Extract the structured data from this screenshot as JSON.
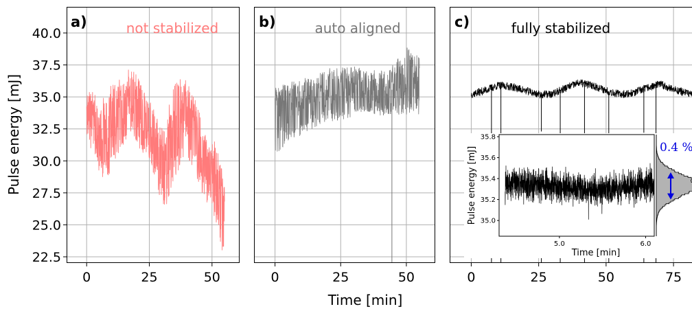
{
  "colors": {
    "series_a": "#ff7b7b",
    "series_b": "#777777",
    "series_c": "#000000",
    "annotation": "#0000dd",
    "grid": "#b0b0b0",
    "histogram_fill": "#b3b3b3"
  },
  "chart_data": [
    {
      "panel": "a)",
      "type": "line",
      "title": "not stabilized",
      "ylabel": "Pulse energy [mJ]",
      "xlim": [
        -8,
        61
      ],
      "ylim": [
        22,
        42.2
      ],
      "xticks": [
        0,
        25,
        50
      ],
      "yticks": [
        22.5,
        25.0,
        27.5,
        30.0,
        32.5,
        35.0,
        37.5,
        40.0
      ],
      "grid": true,
      "x": [
        0,
        3,
        5,
        7,
        9,
        11,
        14,
        17,
        19,
        21,
        23,
        25,
        27,
        29,
        31,
        33,
        35,
        37,
        39,
        41,
        43,
        45,
        47,
        49,
        51,
        53,
        55
      ],
      "y_mean": [
        33.5,
        32.9,
        32.3,
        32.0,
        32.6,
        33.6,
        34.5,
        35.2,
        34.8,
        34.0,
        33.2,
        32.5,
        31.8,
        30.3,
        29.5,
        30.5,
        32.6,
        33.5,
        33.8,
        33.0,
        32.3,
        30.8,
        29.5,
        29.0,
        28.5,
        27.5,
        26.0
      ],
      "y_min": [
        32.0,
        30.0,
        29.0,
        28.5,
        28.8,
        30.0,
        31.0,
        32.0,
        31.8,
        31.0,
        30.5,
        30.2,
        28.5,
        27.0,
        26.2,
        27.0,
        28.5,
        29.5,
        30.5,
        30.0,
        29.0,
        27.8,
        27.0,
        26.5,
        25.5,
        23.5,
        22.6
      ],
      "y_max": [
        35.6,
        35.3,
        34.5,
        35.0,
        35.8,
        36.0,
        36.5,
        37.2,
        37.0,
        36.3,
        35.4,
        35.0,
        34.0,
        33.0,
        32.6,
        34.5,
        36.2,
        36.5,
        36.6,
        36.0,
        34.9,
        33.8,
        32.2,
        31.0,
        31.5,
        30.5,
        28.5
      ]
    },
    {
      "panel": "b)",
      "type": "line",
      "title": "auto aligned",
      "xlim": [
        -8,
        61
      ],
      "ylim": [
        22,
        42.2
      ],
      "xticks": [
        0,
        25,
        50
      ],
      "grid": true,
      "x": [
        0,
        5,
        10,
        15,
        20,
        25,
        30,
        35,
        40,
        45,
        50,
        55
      ],
      "y_mean": [
        34.2,
        34.4,
        34.5,
        34.8,
        35.3,
        35.4,
        35.8,
        35.6,
        35.2,
        35.6,
        36.0,
        35.6
      ],
      "y_min": [
        30.2,
        31.5,
        32.0,
        32.5,
        33.0,
        33.2,
        33.5,
        33.8,
        33.5,
        33.6,
        33.6,
        33.4
      ],
      "y_max": [
        35.8,
        36.1,
        36.4,
        36.6,
        37.2,
        37.4,
        37.5,
        37.2,
        37.0,
        37.6,
        38.9,
        38.5
      ],
      "dropout": {
        "x": 44.5,
        "y": 22
      }
    },
    {
      "panel": "c)",
      "type": "line",
      "title": "fully stabilized",
      "xlim": [
        -8,
        90
      ],
      "ylim": [
        22,
        42.2
      ],
      "xticks": [
        0,
        25,
        50,
        75
      ],
      "grid": true,
      "x": [
        0,
        5,
        10,
        15,
        20,
        25,
        30,
        35,
        40,
        45,
        50,
        55,
        60,
        65,
        70,
        75,
        80,
        85,
        90
      ],
      "y_mean": [
        35.2,
        35.5,
        35.9,
        35.8,
        35.5,
        35.2,
        35.2,
        35.7,
        36.1,
        35.9,
        35.5,
        35.2,
        35.3,
        35.7,
        36.0,
        35.6,
        35.3,
        35.1,
        35.1
      ],
      "band": 0.3,
      "dropouts": [
        {
          "x": 7.5,
          "y": 32.0
        },
        {
          "x": 11,
          "y": 31.0
        },
        {
          "x": 26,
          "y": 32.3
        },
        {
          "x": 33,
          "y": 31.8
        },
        {
          "x": 42,
          "y": 32.1
        },
        {
          "x": 51,
          "y": 31.2
        },
        {
          "x": 64,
          "y": 32.2
        },
        {
          "x": 68.5,
          "y": 31.0
        },
        {
          "x": 83,
          "y": 31.6
        }
      ],
      "inset": {
        "xlabel": "Time [min]",
        "ylabel": "Pulse energy [mJ]",
        "xlim": [
          4.3,
          6.1
        ],
        "ylim": [
          34.85,
          35.82
        ],
        "xticks": [
          5.0,
          6.0
        ],
        "yticks": [
          35.0,
          35.2,
          35.4,
          35.6,
          35.8
        ],
        "mean": 35.33,
        "spread": 0.11,
        "histogram": {
          "annotation": "0.4 %",
          "arrow_range": [
            35.2,
            35.46
          ]
        }
      }
    }
  ],
  "xlabel": "Time [min]"
}
